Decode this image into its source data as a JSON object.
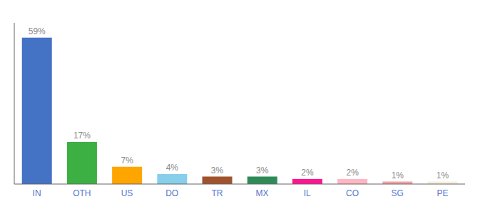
{
  "chart_data": {
    "type": "bar",
    "categories": [
      "IN",
      "OTH",
      "US",
      "DO",
      "TR",
      "MX",
      "IL",
      "CO",
      "SG",
      "PE"
    ],
    "values": [
      59,
      17,
      7,
      4,
      3,
      3,
      2,
      2,
      1,
      1
    ],
    "value_labels": [
      "59%",
      "17%",
      "7%",
      "4%",
      "3%",
      "3%",
      "2%",
      "2%",
      "1%",
      "1%"
    ],
    "colors": [
      "#4472C4",
      "#3CB043",
      "#FFA500",
      "#87CEEB",
      "#A0522D",
      "#2E8B57",
      "#FF1493",
      "#FFB6C1",
      "#F4A0A8",
      "#F5F0E0"
    ],
    "ylim": [
      0,
      65
    ],
    "data_labels": true,
    "tick_labels": "x",
    "grid": false
  }
}
